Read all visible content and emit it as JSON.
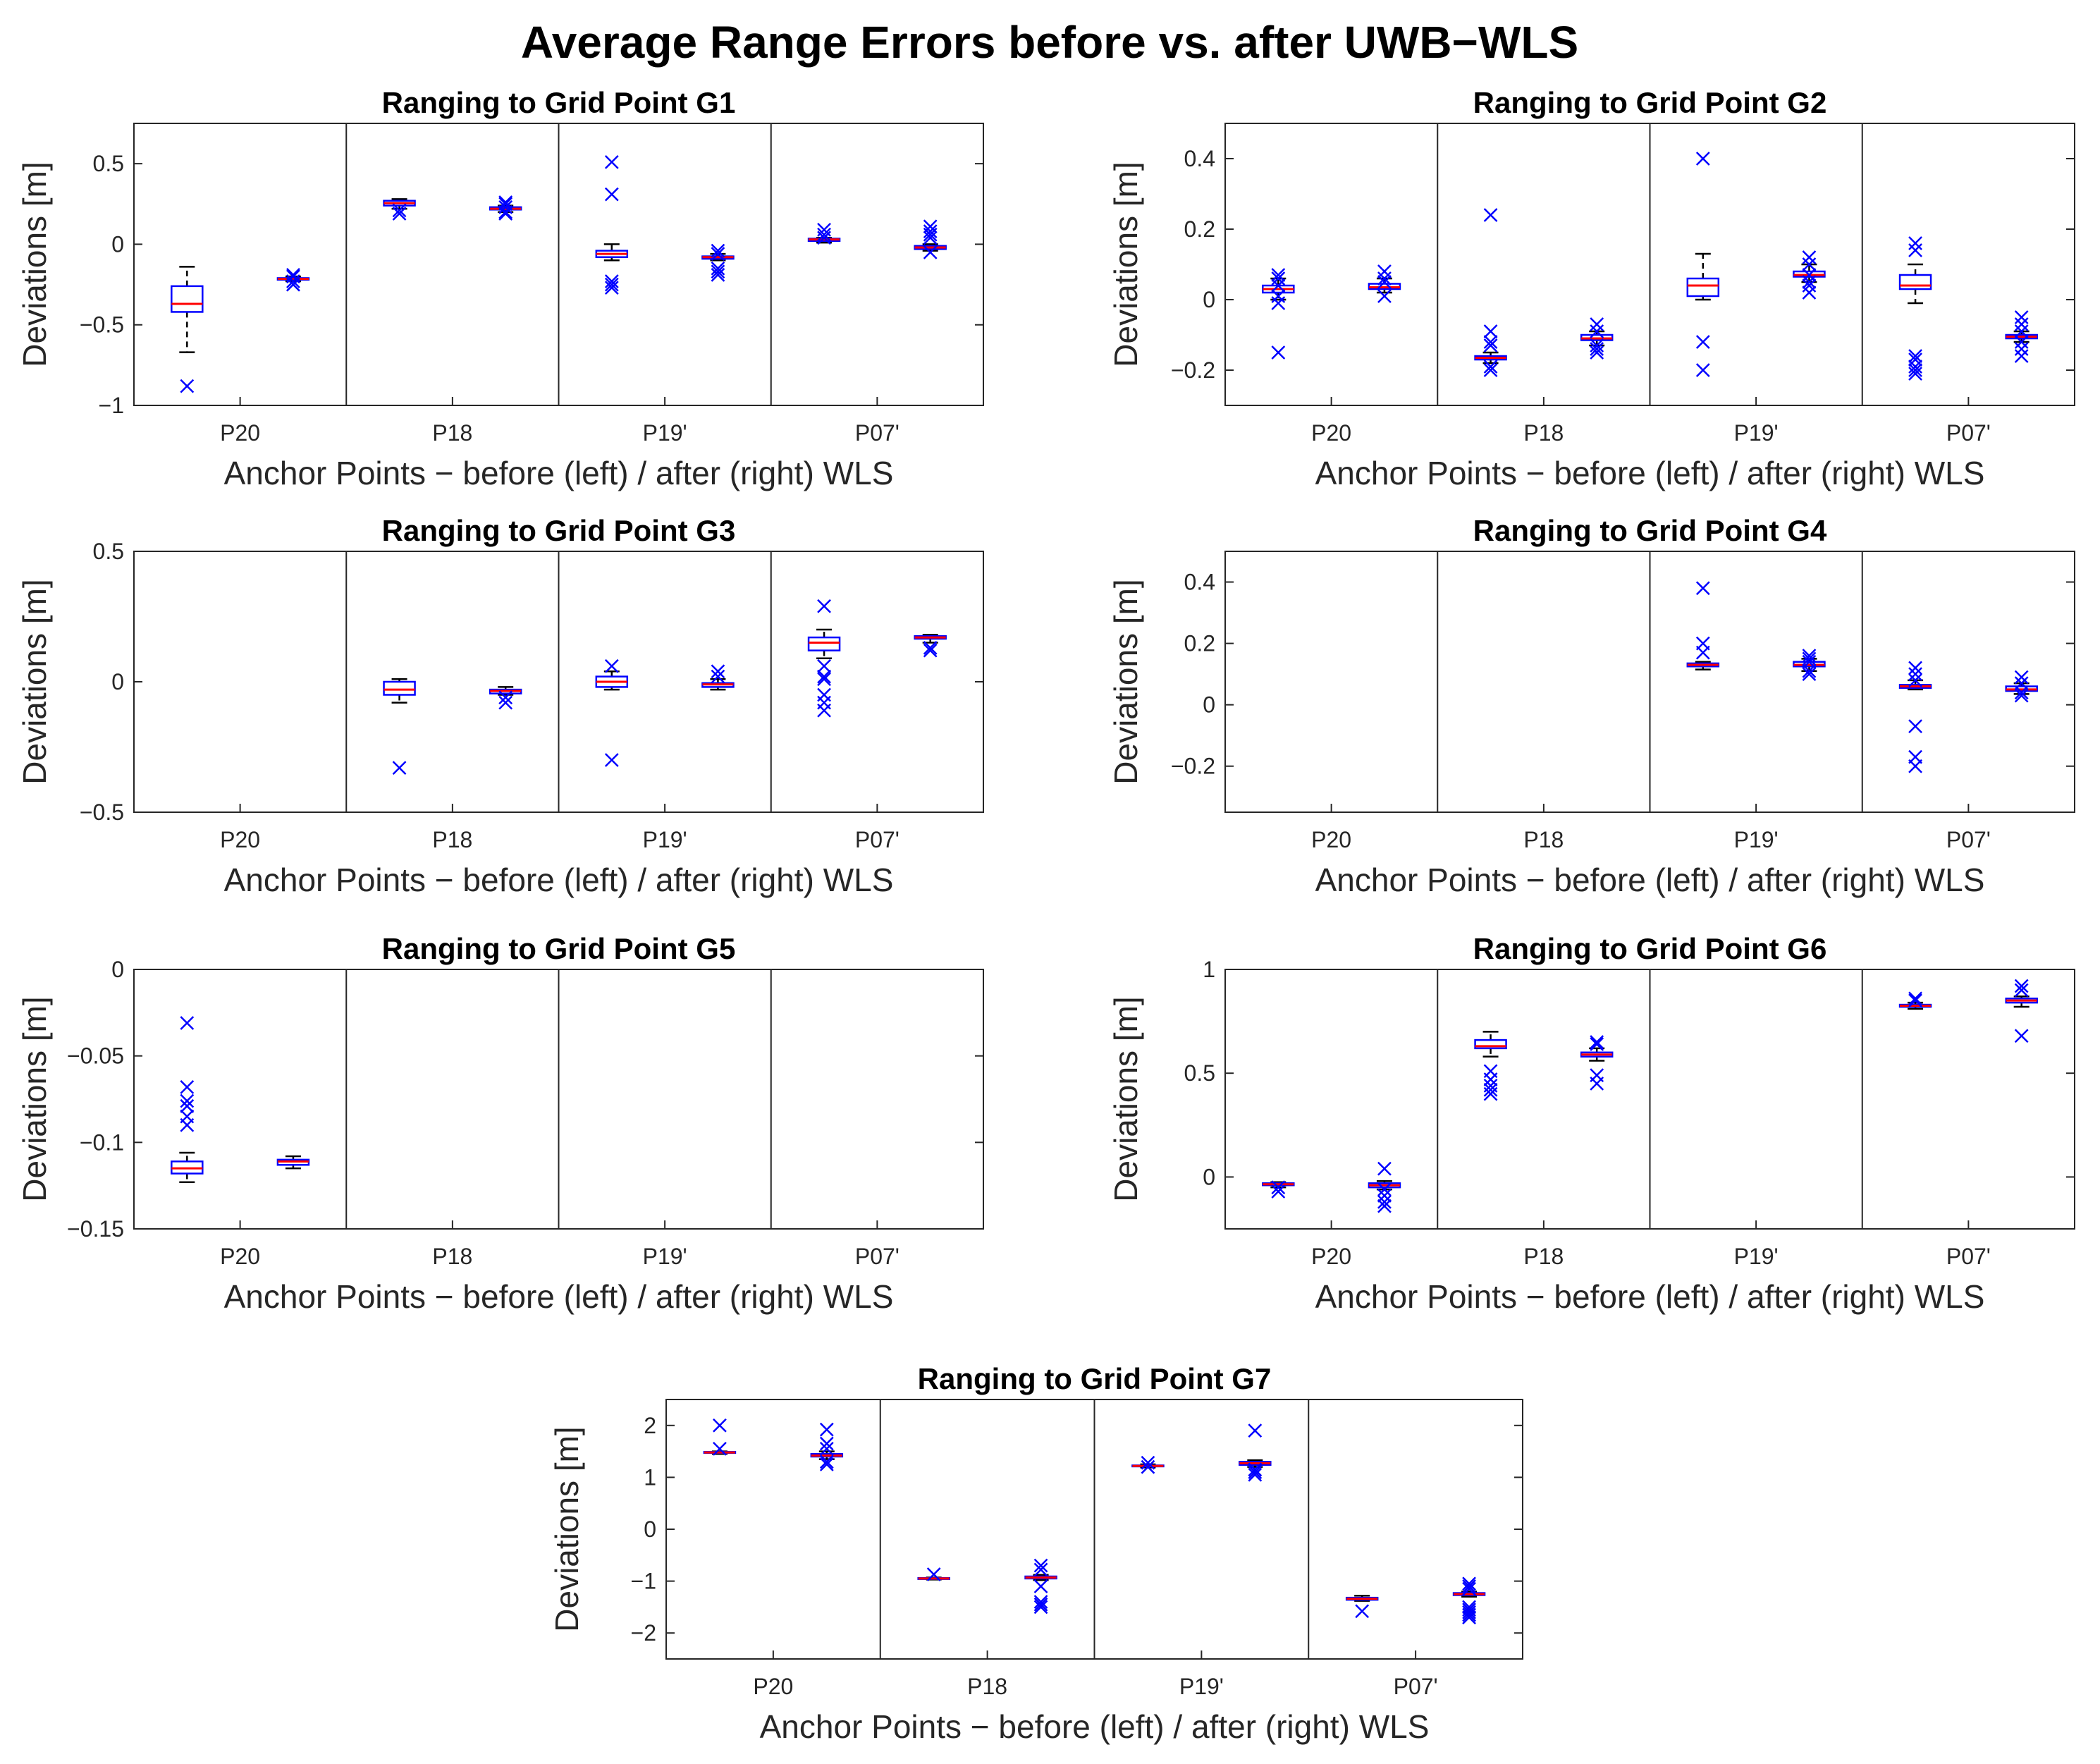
{
  "title": "Average Range Errors before vs. after UWB−WLS",
  "chart_data": [
    {
      "type": "box",
      "title": "Ranging to Grid Point G1",
      "xlabel": "Anchor Points − before (left) / after (right) WLS",
      "ylabel": "Deviations [m]",
      "categories": [
        "P20",
        "P18",
        "P19'",
        "P07'"
      ],
      "ylim": [
        -1,
        0.75
      ],
      "yticks": [
        -1,
        -0.5,
        0,
        0.5
      ],
      "ytick_labels": [
        "−1",
        "−0.5",
        "0",
        "0.5"
      ],
      "boxes": [
        {
          "anchor": "P20",
          "phase": "before",
          "q1": -0.42,
          "median": -0.37,
          "q3": -0.26,
          "whisker_low": -0.67,
          "whisker_high": -0.14,
          "outliers": [
            -0.88
          ]
        },
        {
          "anchor": "P20",
          "phase": "after",
          "q1": -0.22,
          "median": -0.215,
          "q3": -0.21,
          "whisker_low": -0.23,
          "whisker_high": -0.2,
          "outliers": [
            -0.19,
            -0.2,
            -0.23,
            -0.25,
            -0.25
          ]
        },
        {
          "anchor": "P18",
          "phase": "before",
          "q1": 0.24,
          "median": 0.255,
          "q3": 0.27,
          "whisker_low": 0.22,
          "whisker_high": 0.28,
          "outliers": [
            0.19,
            0.21
          ]
        },
        {
          "anchor": "P18",
          "phase": "after",
          "q1": 0.215,
          "median": 0.22,
          "q3": 0.23,
          "whisker_low": 0.2,
          "whisker_high": 0.24,
          "outliers": [
            0.19,
            0.2,
            0.23,
            0.25,
            0.26
          ]
        },
        {
          "anchor": "P19'",
          "phase": "before",
          "q1": -0.08,
          "median": -0.06,
          "q3": -0.04,
          "whisker_low": -0.1,
          "whisker_high": 0.0,
          "outliers": [
            0.51,
            0.31,
            -0.23,
            -0.25,
            -0.27
          ]
        },
        {
          "anchor": "P19'",
          "phase": "after",
          "q1": -0.09,
          "median": -0.08,
          "q3": -0.075,
          "whisker_low": -0.1,
          "whisker_high": -0.06,
          "outliers": [
            -0.04,
            -0.06,
            -0.15,
            -0.17,
            -0.19
          ]
        },
        {
          "anchor": "P07'",
          "phase": "before",
          "q1": 0.02,
          "median": 0.03,
          "q3": 0.035,
          "whisker_low": 0.01,
          "whisker_high": 0.04,
          "outliers": [
            0.09,
            0.06,
            0.04
          ]
        },
        {
          "anchor": "P07'",
          "phase": "after",
          "q1": -0.03,
          "median": -0.02,
          "q3": -0.01,
          "whisker_low": -0.04,
          "whisker_high": 0.0,
          "outliers": [
            0.11,
            0.08,
            0.06,
            0.04,
            -0.05
          ]
        }
      ]
    },
    {
      "type": "box",
      "title": "Ranging to Grid Point G2",
      "xlabel": "Anchor Points − before (left) / after (right) WLS",
      "ylabel": "Deviations [m]",
      "categories": [
        "P20",
        "P18",
        "P19'",
        "P07'"
      ],
      "ylim": [
        -0.3,
        0.5
      ],
      "yticks": [
        -0.2,
        0,
        0.2,
        0.4
      ],
      "ytick_labels": [
        "−0.2",
        "0",
        "0.2",
        "0.4"
      ],
      "boxes": [
        {
          "anchor": "P20",
          "phase": "before",
          "q1": 0.02,
          "median": 0.03,
          "q3": 0.04,
          "whisker_low": 0.0,
          "whisker_high": 0.06,
          "outliers": [
            0.07,
            0.06,
            0.04,
            0.01,
            -0.01,
            -0.15
          ]
        },
        {
          "anchor": "P20",
          "phase": "after",
          "q1": 0.03,
          "median": 0.035,
          "q3": 0.045,
          "whisker_low": 0.02,
          "whisker_high": 0.06,
          "outliers": [
            0.08,
            0.06,
            0.05,
            0.01
          ]
        },
        {
          "anchor": "P18",
          "phase": "before",
          "q1": -0.17,
          "median": -0.165,
          "q3": -0.16,
          "whisker_low": -0.18,
          "whisker_high": -0.15,
          "outliers": [
            0.24,
            -0.09,
            -0.12,
            -0.13,
            -0.19,
            -0.2
          ]
        },
        {
          "anchor": "P18",
          "phase": "after",
          "q1": -0.115,
          "median": -0.11,
          "q3": -0.1,
          "whisker_low": -0.13,
          "whisker_high": -0.09,
          "outliers": [
            -0.07,
            -0.09,
            -0.13,
            -0.14,
            -0.15
          ]
        },
        {
          "anchor": "P19'",
          "phase": "before",
          "q1": 0.01,
          "median": 0.04,
          "q3": 0.06,
          "whisker_low": 0.0,
          "whisker_high": 0.13,
          "outliers": [
            0.4,
            -0.12,
            -0.2
          ]
        },
        {
          "anchor": "P19'",
          "phase": "after",
          "q1": 0.065,
          "median": 0.07,
          "q3": 0.08,
          "whisker_low": 0.05,
          "whisker_high": 0.1,
          "outliers": [
            0.12,
            0.1,
            0.07,
            0.05,
            0.04,
            0.02
          ]
        },
        {
          "anchor": "P07'",
          "phase": "before",
          "q1": 0.03,
          "median": 0.04,
          "q3": 0.07,
          "whisker_low": -0.01,
          "whisker_high": 0.1,
          "outliers": [
            0.16,
            0.14,
            -0.16,
            -0.17,
            -0.19,
            -0.2,
            -0.21
          ]
        },
        {
          "anchor": "P07'",
          "phase": "after",
          "q1": -0.11,
          "median": -0.105,
          "q3": -0.1,
          "whisker_low": -0.12,
          "whisker_high": -0.09,
          "outliers": [
            -0.05,
            -0.07,
            -0.09,
            -0.12,
            -0.14,
            -0.16
          ]
        }
      ]
    },
    {
      "type": "box",
      "title": "Ranging to Grid Point G3",
      "xlabel": "Anchor Points − before (left) / after (right) WLS",
      "ylabel": "Deviations [m]",
      "categories": [
        "P20",
        "P18",
        "P19'",
        "P07'"
      ],
      "ylim": [
        -0.5,
        0.5
      ],
      "yticks": [
        -0.5,
        0,
        0.5
      ],
      "ytick_labels": [
        "−0.5",
        "0",
        "0.5"
      ],
      "boxes": [
        {
          "anchor": "P18",
          "phase": "before",
          "q1": -0.05,
          "median": -0.03,
          "q3": 0.0,
          "whisker_low": -0.08,
          "whisker_high": 0.01,
          "outliers": [
            -0.33
          ]
        },
        {
          "anchor": "P18",
          "phase": "after",
          "q1": -0.045,
          "median": -0.035,
          "q3": -0.03,
          "whisker_low": -0.05,
          "whisker_high": -0.02,
          "outliers": [
            -0.06,
            -0.08
          ]
        },
        {
          "anchor": "P19'",
          "phase": "before",
          "q1": -0.02,
          "median": 0.0,
          "q3": 0.02,
          "whisker_low": -0.03,
          "whisker_high": 0.04,
          "outliers": [
            0.06,
            -0.3
          ]
        },
        {
          "anchor": "P19'",
          "phase": "after",
          "q1": -0.02,
          "median": -0.01,
          "q3": -0.005,
          "whisker_low": -0.03,
          "whisker_high": 0.01,
          "outliers": [
            0.04,
            0.02
          ]
        },
        {
          "anchor": "P07'",
          "phase": "before",
          "q1": 0.12,
          "median": 0.15,
          "q3": 0.17,
          "whisker_low": 0.09,
          "whisker_high": 0.2,
          "outliers": [
            0.29,
            0.06,
            0.02,
            0.01,
            -0.05,
            -0.08,
            -0.11
          ]
        },
        {
          "anchor": "P07'",
          "phase": "after",
          "q1": 0.165,
          "median": 0.17,
          "q3": 0.175,
          "whisker_low": 0.15,
          "whisker_high": 0.18,
          "outliers": [
            0.13,
            0.12
          ]
        }
      ]
    },
    {
      "type": "box",
      "title": "Ranging to Grid Point G4",
      "xlabel": "Anchor Points − before (left) / after (right) WLS",
      "ylabel": "Deviations [m]",
      "categories": [
        "P20",
        "P18",
        "P19'",
        "P07'"
      ],
      "ylim": [
        -0.35,
        0.5
      ],
      "yticks": [
        -0.2,
        0,
        0.2,
        0.4
      ],
      "ytick_labels": [
        "−0.2",
        "0",
        "0.2",
        "0.4"
      ],
      "boxes": [
        {
          "anchor": "P19'",
          "phase": "before",
          "q1": 0.125,
          "median": 0.13,
          "q3": 0.135,
          "whisker_low": 0.115,
          "whisker_high": 0.14,
          "outliers": [
            0.38,
            0.2,
            0.17
          ]
        },
        {
          "anchor": "P19'",
          "phase": "after",
          "q1": 0.125,
          "median": 0.13,
          "q3": 0.14,
          "whisker_low": 0.11,
          "whisker_high": 0.15,
          "outliers": [
            0.16,
            0.15,
            0.14,
            0.11,
            0.1
          ]
        },
        {
          "anchor": "P07'",
          "phase": "before",
          "q1": 0.055,
          "median": 0.06,
          "q3": 0.065,
          "whisker_low": 0.05,
          "whisker_high": 0.08,
          "outliers": [
            0.12,
            0.1,
            0.08,
            -0.07,
            -0.17,
            -0.2
          ]
        },
        {
          "anchor": "P07'",
          "phase": "after",
          "q1": 0.045,
          "median": 0.05,
          "q3": 0.06,
          "whisker_low": 0.035,
          "whisker_high": 0.07,
          "outliers": [
            0.09,
            0.07,
            0.04,
            0.03
          ]
        }
      ]
    },
    {
      "type": "box",
      "title": "Ranging to Grid Point G5",
      "xlabel": "Anchor Points − before (left) / after (right) WLS",
      "ylabel": "Deviations [m]",
      "categories": [
        "P20",
        "P18",
        "P19'",
        "P07'"
      ],
      "ylim": [
        -0.15,
        0
      ],
      "yticks": [
        -0.15,
        -0.1,
        -0.05,
        0
      ],
      "ytick_labels": [
        "−0.15",
        "−0.1",
        "−0.05",
        "0"
      ],
      "boxes": [
        {
          "anchor": "P20",
          "phase": "before",
          "q1": -0.118,
          "median": -0.115,
          "q3": -0.111,
          "whisker_low": -0.123,
          "whisker_high": -0.106,
          "outliers": [
            -0.031,
            -0.068,
            -0.076,
            -0.079,
            -0.085,
            -0.09
          ]
        },
        {
          "anchor": "P20",
          "phase": "after",
          "q1": -0.113,
          "median": -0.111,
          "q3": -0.11,
          "whisker_low": -0.115,
          "whisker_high": -0.108,
          "outliers": []
        }
      ]
    },
    {
      "type": "box",
      "title": "Ranging to Grid Point G6",
      "xlabel": "Anchor Points − before (left) / after (right) WLS",
      "ylabel": "Deviations [m]",
      "categories": [
        "P20",
        "P18",
        "P19'",
        "P07'"
      ],
      "ylim": [
        -0.25,
        1
      ],
      "yticks": [
        0,
        0.5,
        1
      ],
      "ytick_labels": [
        "0",
        "0.5",
        "1"
      ],
      "boxes": [
        {
          "anchor": "P20",
          "phase": "before",
          "q1": -0.04,
          "median": -0.035,
          "q3": -0.03,
          "whisker_low": -0.05,
          "whisker_high": -0.025,
          "outliers": [
            -0.05,
            -0.07
          ]
        },
        {
          "anchor": "P20",
          "phase": "after",
          "q1": -0.05,
          "median": -0.04,
          "q3": -0.03,
          "whisker_low": -0.06,
          "whisker_high": -0.02,
          "outliers": [
            0.04,
            -0.06,
            -0.09,
            -0.12,
            -0.14
          ]
        },
        {
          "anchor": "P18",
          "phase": "before",
          "q1": 0.62,
          "median": 0.63,
          "q3": 0.66,
          "whisker_low": 0.58,
          "whisker_high": 0.7,
          "outliers": [
            0.51,
            0.47,
            0.44,
            0.42,
            0.4
          ]
        },
        {
          "anchor": "P18",
          "phase": "after",
          "q1": 0.58,
          "median": 0.59,
          "q3": 0.6,
          "whisker_low": 0.56,
          "whisker_high": 0.62,
          "outliers": [
            0.65,
            0.64,
            0.49,
            0.45
          ]
        },
        {
          "anchor": "P07'",
          "phase": "before",
          "q1": 0.82,
          "median": 0.825,
          "q3": 0.83,
          "whisker_low": 0.81,
          "whisker_high": 0.84,
          "outliers": [
            0.86,
            0.85
          ]
        },
        {
          "anchor": "P07'",
          "phase": "after",
          "q1": 0.84,
          "median": 0.85,
          "q3": 0.86,
          "whisker_low": 0.82,
          "whisker_high": 0.87,
          "outliers": [
            0.92,
            0.9,
            0.68
          ]
        }
      ]
    },
    {
      "type": "box",
      "title": "Ranging to Grid Point G7",
      "xlabel": "Anchor Points − before (left) / after (right) WLS",
      "ylabel": "Deviations [m]",
      "categories": [
        "P20",
        "P18",
        "P19'",
        "P07'"
      ],
      "ylim": [
        -2.5,
        2.5
      ],
      "yticks": [
        -2,
        -1,
        0,
        1,
        2
      ],
      "ytick_labels": [
        "−2",
        "−1",
        "0",
        "1",
        "2"
      ],
      "boxes": [
        {
          "anchor": "P20",
          "phase": "before",
          "q1": 1.47,
          "median": 1.48,
          "q3": 1.49,
          "whisker_low": 1.45,
          "whisker_high": 1.5,
          "outliers": [
            2.0,
            1.55
          ]
        },
        {
          "anchor": "P20",
          "phase": "after",
          "q1": 1.4,
          "median": 1.42,
          "q3": 1.45,
          "whisker_low": 1.35,
          "whisker_high": 1.5,
          "outliers": [
            1.92,
            1.65,
            1.55,
            1.3,
            1.25
          ]
        },
        {
          "anchor": "P18",
          "phase": "before",
          "q1": -0.96,
          "median": -0.95,
          "q3": -0.94,
          "whisker_low": -0.97,
          "whisker_high": -0.93,
          "outliers": [
            -0.87
          ]
        },
        {
          "anchor": "P18",
          "phase": "after",
          "q1": -0.95,
          "median": -0.93,
          "q3": -0.91,
          "whisker_low": -0.98,
          "whisker_high": -0.88,
          "outliers": [
            -0.7,
            -0.78,
            -1.1,
            -1.4,
            -1.45,
            -1.5
          ]
        },
        {
          "anchor": "P19'",
          "phase": "before",
          "q1": 1.21,
          "median": 1.22,
          "q3": 1.23,
          "whisker_low": 1.19,
          "whisker_high": 1.25,
          "outliers": [
            1.28,
            1.2
          ]
        },
        {
          "anchor": "P19'",
          "phase": "after",
          "q1": 1.24,
          "median": 1.27,
          "q3": 1.3,
          "whisker_low": 1.2,
          "whisker_high": 1.33,
          "outliers": [
            1.9,
            1.15,
            1.1,
            1.05
          ]
        },
        {
          "anchor": "P07'",
          "phase": "before",
          "q1": -1.36,
          "median": -1.34,
          "q3": -1.32,
          "whisker_low": -1.38,
          "whisker_high": -1.28,
          "outliers": [
            -1.58
          ]
        },
        {
          "anchor": "P07'",
          "phase": "after",
          "q1": -1.27,
          "median": -1.25,
          "q3": -1.23,
          "whisker_low": -1.3,
          "whisker_high": -1.2,
          "outliers": [
            -1.05,
            -1.1,
            -1.15,
            -1.5,
            -1.55,
            -1.6,
            -1.65,
            -1.7
          ]
        }
      ]
    }
  ]
}
